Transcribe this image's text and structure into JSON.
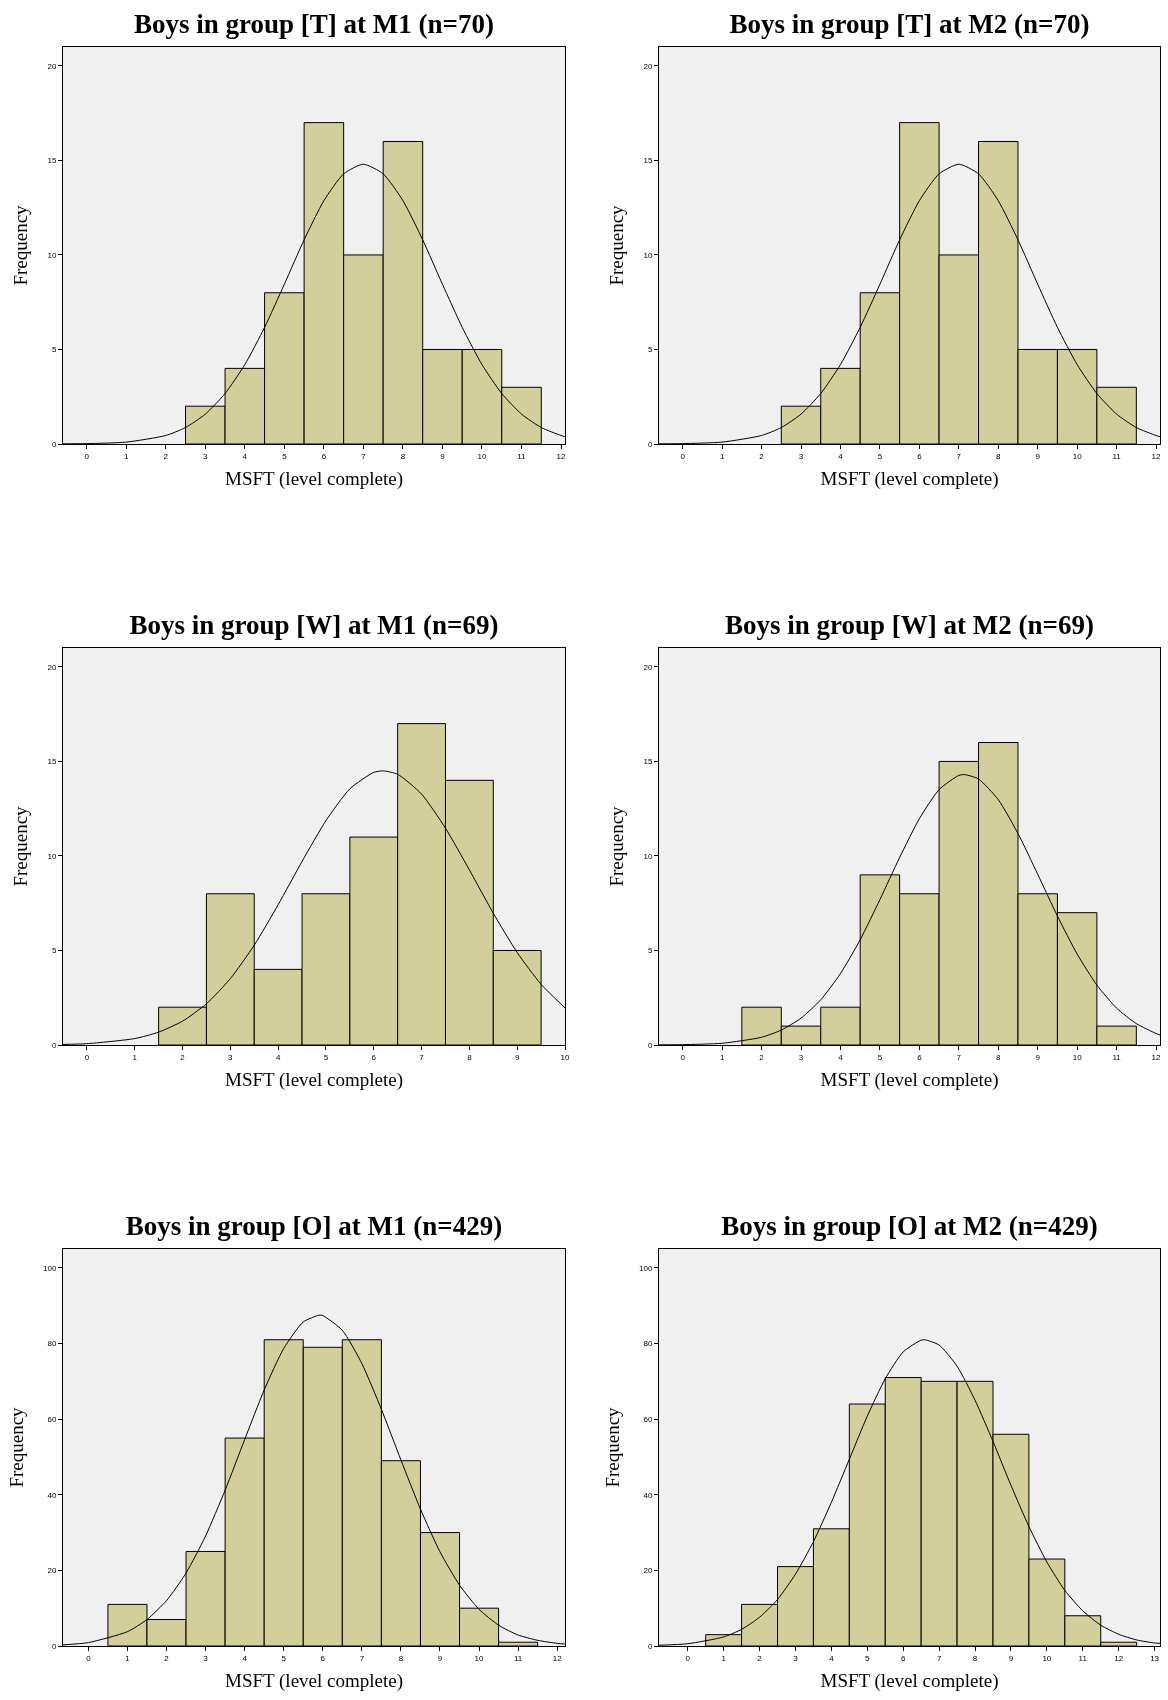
{
  "chart_data": [
    {
      "type": "histogram",
      "title": "Boys in group [T] at M1 (n=70)",
      "xlabel": "MSFT (level complete)",
      "ylabel": "Frequency",
      "bins": [
        2.5,
        3.5,
        4.5,
        5.5,
        6.5,
        7.5,
        8.5,
        9.5,
        10.5,
        11.5
      ],
      "xlim": [
        -0.6,
        12.1
      ],
      "xticks": [
        0,
        1,
        2,
        3,
        4,
        5,
        6,
        7,
        8,
        9,
        10,
        11,
        12
      ],
      "ylim": [
        0,
        21
      ],
      "yticks": [
        0,
        5,
        10,
        15,
        20
      ],
      "grid": false,
      "series": [
        {
          "color": "#d3cf9b",
          "values": [
            2,
            4,
            8,
            17,
            10,
            16,
            5,
            5,
            3
          ]
        },
        {
          "type": "line",
          "color": "#000000",
          "x": [
            -0.6,
            0,
            1,
            2,
            2.5,
            3,
            3.5,
            4,
            4.5,
            5,
            5.5,
            6,
            6.5,
            7,
            7.5,
            8,
            8.5,
            9,
            9.5,
            10,
            10.5,
            11,
            11.5,
            12,
            12.1
          ],
          "values": [
            0.01,
            0.02,
            0.1,
            0.45,
            0.87,
            1.58,
            2.67,
            4.2,
            6.17,
            8.45,
            10.8,
            12.87,
            14.29,
            14.8,
            14.29,
            12.87,
            10.8,
            8.45,
            6.17,
            4.2,
            2.67,
            1.58,
            0.87,
            0.45,
            0.39
          ]
        }
      ]
    },
    {
      "type": "histogram",
      "title": "Boys in group [T] at M2 (n=70)",
      "xlabel": "MSFT (level complete)",
      "ylabel": "Frequency",
      "bins": [
        2.5,
        3.5,
        4.5,
        5.5,
        6.5,
        7.5,
        8.5,
        9.5,
        10.5,
        11.5
      ],
      "xlim": [
        -0.6,
        12.1
      ],
      "xticks": [
        0,
        1,
        2,
        3,
        4,
        5,
        6,
        7,
        8,
        9,
        10,
        11,
        12
      ],
      "ylim": [
        0,
        21
      ],
      "yticks": [
        0,
        5,
        10,
        15,
        20
      ],
      "grid": false,
      "series": [
        {
          "color": "#d3cf9b",
          "values": [
            2,
            4,
            8,
            17,
            10,
            16,
            5,
            5,
            3
          ]
        },
        {
          "type": "line",
          "color": "#000000",
          "x": [
            -0.6,
            0,
            1,
            2,
            2.5,
            3,
            3.5,
            4,
            4.5,
            5,
            5.5,
            6,
            6.5,
            7,
            7.5,
            8,
            8.5,
            9,
            9.5,
            10,
            10.5,
            11,
            11.5,
            12,
            12.1
          ],
          "values": [
            0.01,
            0.02,
            0.1,
            0.45,
            0.87,
            1.58,
            2.67,
            4.2,
            6.17,
            8.45,
            10.8,
            12.87,
            14.29,
            14.8,
            14.29,
            12.87,
            10.8,
            8.45,
            6.17,
            4.2,
            2.67,
            1.58,
            0.87,
            0.45,
            0.39
          ]
        }
      ]
    },
    {
      "type": "histogram",
      "title": "Boys in group [W] at M1 (n=69)",
      "xlabel": "MSFT (level complete)",
      "ylabel": "Frequency",
      "bins": [
        1.5,
        2.5,
        3.5,
        4.5,
        5.5,
        6.5,
        7.5,
        8.5,
        9.5
      ],
      "xlim": [
        -0.5,
        10
      ],
      "xticks": [
        0,
        1,
        2,
        3,
        4,
        5,
        6,
        7,
        8,
        9,
        10
      ],
      "ylim": [
        0,
        21
      ],
      "yticks": [
        0,
        5,
        10,
        15,
        20
      ],
      "grid": false,
      "series": [
        {
          "color": "#d3cf9b",
          "values": [
            2,
            8,
            4,
            8,
            11,
            17,
            14,
            5
          ]
        },
        {
          "type": "line",
          "color": "#000000",
          "x": [
            -0.5,
            0,
            1,
            1.5,
            2,
            2.5,
            3,
            3.5,
            4,
            4.5,
            5,
            5.5,
            6,
            6.2,
            6.5,
            7,
            7.5,
            8,
            8.5,
            9,
            9.5,
            10
          ],
          "values": [
            0.03,
            0.07,
            0.34,
            0.68,
            1.26,
            2.18,
            3.51,
            5.28,
            7.42,
            9.71,
            11.87,
            13.55,
            14.42,
            14.5,
            14.32,
            13.27,
            11.47,
            9.26,
            6.97,
            4.89,
            3.21,
            1.96
          ]
        }
      ]
    },
    {
      "type": "histogram",
      "title": "Boys in group [W] at M2 (n=69)",
      "xlabel": "MSFT (level complete)",
      "ylabel": "Frequency",
      "bins": [
        1.5,
        2.5,
        3.5,
        4.5,
        5.5,
        6.5,
        7.5,
        8.5,
        9.5,
        10.5,
        11.5
      ],
      "xlim": [
        -0.6,
        12.1
      ],
      "xticks": [
        0,
        1,
        2,
        3,
        4,
        5,
        6,
        7,
        8,
        9,
        10,
        11,
        12
      ],
      "ylim": [
        0,
        21
      ],
      "yticks": [
        0,
        5,
        10,
        15,
        20
      ],
      "grid": false,
      "series": [
        {
          "color": "#d3cf9b",
          "values": [
            2,
            1,
            2,
            9,
            8,
            15,
            16,
            8,
            7,
            1
          ]
        },
        {
          "type": "line",
          "color": "#000000",
          "x": [
            -0.6,
            0,
            1,
            2,
            2.5,
            3,
            3.5,
            4,
            4.5,
            5,
            5.5,
            6,
            6.5,
            7,
            7.15,
            7.5,
            8,
            8.5,
            9,
            9.5,
            10,
            10.5,
            11,
            11.5,
            12,
            12.1
          ],
          "values": [
            0.01,
            0.02,
            0.09,
            0.41,
            0.79,
            1.42,
            2.39,
            3.78,
            5.57,
            7.69,
            9.92,
            11.97,
            13.51,
            14.26,
            14.3,
            14.07,
            12.98,
            11.19,
            9.03,
            6.82,
            4.81,
            3.17,
            1.95,
            1.13,
            0.61,
            0.53
          ]
        }
      ]
    },
    {
      "type": "histogram",
      "title": "Boys in group [O] at M1 (n=429)",
      "xlabel": "MSFT (level complete)",
      "ylabel": "Frequency",
      "bins": [
        0.5,
        1.5,
        2.5,
        3.5,
        4.5,
        5.5,
        6.5,
        7.5,
        8.5,
        9.5,
        10.5,
        11.5
      ],
      "xlim": [
        -0.65,
        12.2
      ],
      "xticks": [
        0,
        1,
        2,
        3,
        4,
        5,
        6,
        7,
        8,
        9,
        10,
        11,
        12
      ],
      "ylim": [
        0,
        105
      ],
      "yticks": [
        0,
        20,
        40,
        60,
        80,
        100
      ],
      "grid": false,
      "series": [
        {
          "color": "#d3cf9b",
          "values": [
            11,
            7,
            25,
            55,
            81,
            79,
            81,
            49,
            30,
            10,
            1
          ]
        },
        {
          "type": "line",
          "color": "#000000",
          "x": [
            -0.65,
            0,
            1,
            1.5,
            2,
            2.5,
            3,
            3.5,
            4,
            4.5,
            5,
            5.5,
            5.9,
            6,
            6.5,
            7,
            7.5,
            8,
            8.5,
            9,
            9.5,
            10,
            10.5,
            11,
            11.5,
            12,
            12.2
          ],
          "values": [
            0.3,
            0.9,
            3.8,
            7,
            12,
            19.3,
            29.1,
            41.2,
            54.6,
            67.7,
            78.7,
            85.7,
            87.5,
            87.4,
            83.5,
            74.7,
            62.6,
            49.2,
            36.2,
            24.9,
            16.1,
            9.7,
            5.5,
            2.9,
            1.5,
            0.7,
            0.5
          ]
        }
      ]
    },
    {
      "type": "histogram",
      "title": "Boys in group [O] at M2 (n=429)",
      "xlabel": "MSFT (level complete)",
      "ylabel": "Frequency",
      "bins": [
        0.5,
        1.5,
        2.5,
        3.5,
        4.5,
        5.5,
        6.5,
        7.5,
        8.5,
        9.5,
        10.5,
        11.5,
        12.5
      ],
      "xlim": [
        -0.8,
        13.15
      ],
      "xticks": [
        0,
        1,
        2,
        3,
        4,
        5,
        6,
        7,
        8,
        9,
        10,
        11,
        12,
        13
      ],
      "ylim": [
        0,
        105
      ],
      "yticks": [
        0,
        20,
        40,
        60,
        80,
        100
      ],
      "grid": false,
      "series": [
        {
          "color": "#d3cf9b",
          "values": [
            3,
            11,
            21,
            31,
            64,
            71,
            70,
            70,
            56,
            23,
            8,
            1
          ]
        },
        {
          "type": "line",
          "color": "#000000",
          "x": [
            -0.8,
            0,
            1,
            1.5,
            2,
            2.5,
            3,
            3.5,
            4,
            4.5,
            5,
            5.5,
            6,
            6.5,
            6.6,
            7,
            7.5,
            8,
            8.5,
            9,
            9.5,
            10,
            10.5,
            11,
            11.5,
            12,
            12.5,
            13,
            13.15
          ],
          "values": [
            0.2,
            0.6,
            2.4,
            4.4,
            7.6,
            12.3,
            19,
            27.6,
            38,
            49.4,
            60.8,
            70.7,
            77.8,
            80.9,
            81,
            79.6,
            74,
            65,
            54.1,
            42.5,
            31.6,
            22.2,
            14.7,
            9.3,
            5.5,
            3.1,
            1.6,
            0.8,
            0.7
          ]
        }
      ]
    }
  ]
}
